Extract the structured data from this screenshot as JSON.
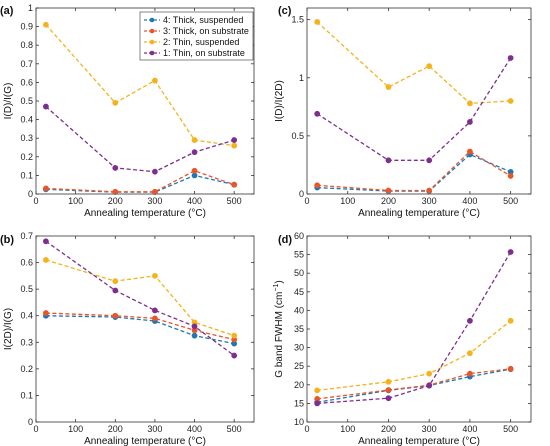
{
  "colors": {
    "series_4": "#1f77b4",
    "series_3": "#e8562a",
    "series_2": "#f5b21b",
    "series_1": "#7e2f8e",
    "axis": "#333333"
  },
  "chart_data": [
    {
      "panel_label": "(a)",
      "type": "line",
      "xlabel": "Annealing temperature (°C)",
      "ylabel": "I(D)/I(G)",
      "xlim": [
        0,
        550
      ],
      "ylim": [
        0,
        1
      ],
      "xticks": [
        "0",
        "100",
        "200",
        "300",
        "400",
        "500"
      ],
      "yticks": [
        "0",
        "0.1",
        "0.2",
        "0.3",
        "0.4",
        "0.5",
        "0.6",
        "0.7",
        "0.8",
        "0.9",
        "1"
      ],
      "x": [
        25,
        200,
        300,
        400,
        500
      ],
      "legend": "top-right",
      "series": [
        {
          "name": "4: Thick, suspended",
          "color": "#1f77b4",
          "values": [
            0.025,
            0.01,
            0.01,
            0.1,
            0.05
          ]
        },
        {
          "name": "3: Thick, on substrate",
          "color": "#e8562a",
          "values": [
            0.03,
            0.012,
            0.012,
            0.125,
            0.05
          ]
        },
        {
          "name": "2: Thin, suspended",
          "color": "#f5b21b",
          "values": [
            0.91,
            0.49,
            0.61,
            0.29,
            0.26
          ]
        },
        {
          "name": "1: Thin, on substrate",
          "color": "#7e2f8e",
          "values": [
            0.47,
            0.14,
            0.12,
            0.225,
            0.29
          ]
        }
      ]
    },
    {
      "panel_label": "(c)",
      "type": "line",
      "xlabel": "Annealing temperature (°C)",
      "ylabel": "I(D)/I(2D)",
      "xlim": [
        0,
        550
      ],
      "ylim": [
        0,
        1.6
      ],
      "xticks": [
        "0",
        "100",
        "200",
        "300",
        "400",
        "500"
      ],
      "yticks": [
        "0",
        "0.5",
        "1",
        "1.5"
      ],
      "x": [
        25,
        200,
        300,
        400,
        500
      ],
      "series": [
        {
          "color": "#1f77b4",
          "values": [
            0.055,
            0.025,
            0.025,
            0.34,
            0.19
          ]
        },
        {
          "color": "#e8562a",
          "values": [
            0.075,
            0.03,
            0.03,
            0.365,
            0.155
          ]
        },
        {
          "color": "#f5b21b",
          "values": [
            1.48,
            0.92,
            1.1,
            0.78,
            0.8
          ]
        },
        {
          "color": "#7e2f8e",
          "values": [
            0.69,
            0.29,
            0.29,
            0.62,
            1.17
          ]
        }
      ]
    },
    {
      "panel_label": "(b)",
      "type": "line",
      "xlabel": "Annealing temperature (°C)",
      "ylabel": "I(2D)/I(G)",
      "xlim": [
        0,
        550
      ],
      "ylim": [
        0,
        0.7
      ],
      "xticks": [
        "0",
        "100",
        "200",
        "300",
        "400",
        "500"
      ],
      "yticks": [
        "0",
        "0.1",
        "0.2",
        "0.3",
        "0.4",
        "0.5",
        "0.6",
        "0.7"
      ],
      "x": [
        25,
        200,
        300,
        400,
        500
      ],
      "series": [
        {
          "color": "#1f77b4",
          "values": [
            0.4,
            0.395,
            0.38,
            0.325,
            0.295
          ]
        },
        {
          "color": "#e8562a",
          "values": [
            0.41,
            0.4,
            0.39,
            0.345,
            0.31
          ]
        },
        {
          "color": "#f5b21b",
          "values": [
            0.61,
            0.53,
            0.55,
            0.375,
            0.325
          ]
        },
        {
          "color": "#7e2f8e",
          "values": [
            0.68,
            0.495,
            0.42,
            0.36,
            0.25
          ]
        }
      ]
    },
    {
      "panel_label": "(d)",
      "type": "line",
      "xlabel": "Annealing temperature (°C)",
      "ylabel": "G band FWHM (cm",
      "ylabel_sup": "−1",
      "ylabel_tail": ")",
      "xlim": [
        0,
        550
      ],
      "ylim": [
        10,
        60
      ],
      "xticks": [
        "0",
        "100",
        "200",
        "300",
        "400",
        "500"
      ],
      "yticks": [
        "10",
        "15",
        "20",
        "25",
        "30",
        "35",
        "40",
        "45",
        "50",
        "55",
        "60"
      ],
      "x": [
        25,
        200,
        300,
        400,
        500
      ],
      "series": [
        {
          "color": "#1f77b4",
          "values": [
            15.3,
            18.5,
            19.8,
            22.2,
            24.2
          ]
        },
        {
          "color": "#e8562a",
          "values": [
            16.2,
            18.6,
            19.9,
            23.0,
            24.3
          ]
        },
        {
          "color": "#f5b21b",
          "values": [
            18.5,
            20.8,
            23.0,
            28.5,
            37.2
          ]
        },
        {
          "color": "#7e2f8e",
          "values": [
            15.0,
            16.4,
            19.8,
            37.2,
            55.7
          ]
        }
      ]
    }
  ]
}
